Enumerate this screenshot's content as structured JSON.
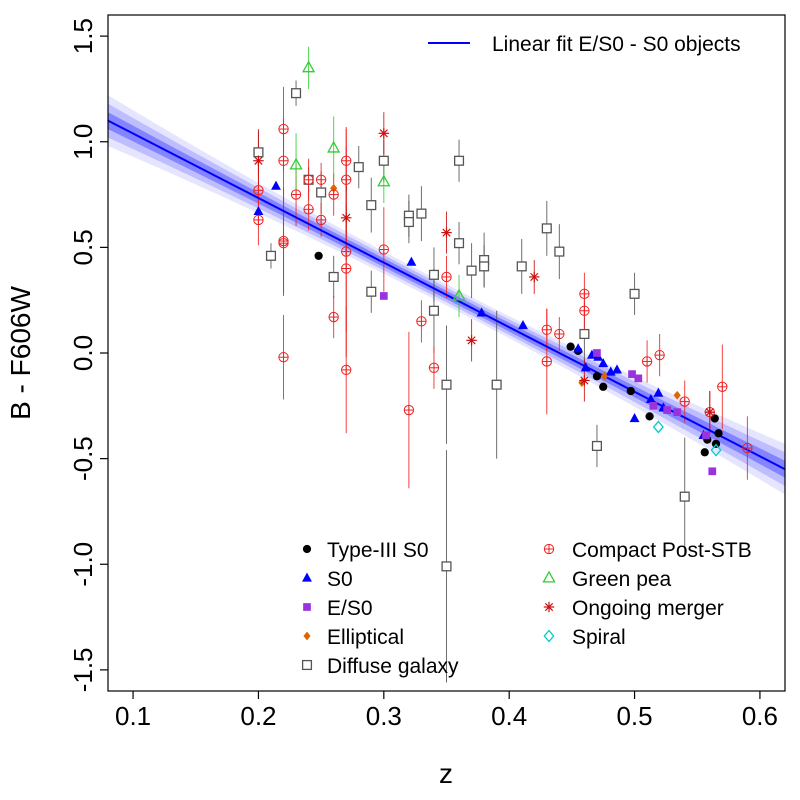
{
  "chart_data": {
    "type": "scatter",
    "title": "",
    "xlabel": "z",
    "ylabel": "B - F606W",
    "xlim": [
      0.08,
      0.62
    ],
    "ylim": [
      -1.6,
      1.6
    ],
    "xticks": [
      0.1,
      0.2,
      0.3,
      0.4,
      0.5,
      0.6
    ],
    "xtick_labels": [
      "0.1",
      "0.2",
      "0.3",
      "0.4",
      "0.5",
      "0.6"
    ],
    "yticks": [
      -1.5,
      -1.0,
      -0.5,
      0.0,
      0.5,
      1.0,
      1.5
    ],
    "ytick_labels": [
      "-1.5",
      "-1.0",
      "-0.5",
      "0.0",
      "0.5",
      "1.0",
      "1.5"
    ],
    "fit": {
      "name": "Linear fit E/S0 - S0 objects",
      "color": "#0000ff",
      "x": [
        0.08,
        0.62
      ],
      "y": [
        1.1,
        -0.55
      ],
      "bands": [
        {
          "color": "#1a1aff",
          "opacity": 0.35,
          "halfwidth": [
            0.04,
            0.02,
            0.04
          ]
        },
        {
          "color": "#3333ff",
          "opacity": 0.22,
          "halfwidth": [
            0.08,
            0.035,
            0.08
          ]
        },
        {
          "color": "#4444ff",
          "opacity": 0.14,
          "halfwidth": [
            0.12,
            0.05,
            0.12
          ]
        }
      ]
    },
    "series": [
      {
        "name": "Type-III S0",
        "marker": "filled-circle",
        "color": "#000000",
        "legend_col": 0,
        "points": [
          [
            0.248,
            0.46,
            0
          ],
          [
            0.449,
            0.03,
            0
          ],
          [
            0.455,
            0.01,
            0
          ],
          [
            0.475,
            -0.16,
            0
          ],
          [
            0.47,
            -0.11,
            0
          ],
          [
            0.497,
            -0.18,
            0
          ],
          [
            0.512,
            -0.3,
            0
          ],
          [
            0.558,
            -0.41,
            0
          ],
          [
            0.556,
            -0.47,
            0
          ],
          [
            0.564,
            -0.31,
            0
          ],
          [
            0.565,
            -0.43,
            0
          ],
          [
            0.567,
            -0.38,
            0
          ]
        ]
      },
      {
        "name": "S0",
        "marker": "filled-triangle",
        "color": "#0000ff",
        "legend_col": 0,
        "points": [
          [
            0.2,
            0.67,
            0
          ],
          [
            0.214,
            0.79,
            0
          ],
          [
            0.322,
            0.43,
            0
          ],
          [
            0.378,
            0.19,
            0
          ],
          [
            0.411,
            0.13,
            0
          ],
          [
            0.455,
            0.02,
            0
          ],
          [
            0.461,
            -0.07,
            0
          ],
          [
            0.466,
            -0.01,
            0
          ],
          [
            0.471,
            -0.02,
            0
          ],
          [
            0.475,
            -0.05,
            0
          ],
          [
            0.481,
            -0.09,
            0
          ],
          [
            0.486,
            -0.08,
            0
          ],
          [
            0.5,
            -0.31,
            0
          ],
          [
            0.513,
            -0.22,
            0
          ],
          [
            0.519,
            -0.19,
            0
          ],
          [
            0.523,
            -0.26,
            0
          ],
          [
            0.555,
            -0.39,
            0
          ]
        ]
      },
      {
        "name": "E/S0",
        "marker": "filled-square",
        "color": "#9933dd",
        "legend_col": 0,
        "points": [
          [
            0.3,
            0.27,
            0
          ],
          [
            0.47,
            0.0,
            0
          ],
          [
            0.498,
            -0.1,
            0
          ],
          [
            0.503,
            -0.12,
            0
          ],
          [
            0.515,
            -0.25,
            0
          ],
          [
            0.526,
            -0.27,
            0
          ],
          [
            0.534,
            -0.28,
            0
          ],
          [
            0.557,
            -0.39,
            0
          ],
          [
            0.562,
            -0.56,
            0
          ]
        ]
      },
      {
        "name": "Elliptical",
        "marker": "filled-diamond",
        "color": "#dd6600",
        "legend_col": 0,
        "points": [
          [
            0.26,
            0.78,
            0
          ],
          [
            0.458,
            -0.14,
            0
          ],
          [
            0.476,
            -0.11,
            0
          ],
          [
            0.534,
            -0.2,
            0
          ]
        ]
      },
      {
        "name": "Diffuse galaxy",
        "marker": "open-square",
        "color": "#555555",
        "legend_col": 0,
        "points": [
          [
            0.2,
            0.95,
            0.1
          ],
          [
            0.21,
            0.46,
            0.06
          ],
          [
            0.23,
            1.23,
            0.06
          ],
          [
            0.24,
            0.82,
            0.06
          ],
          [
            0.25,
            0.76,
            0.1
          ],
          [
            0.26,
            0.36,
            0.1
          ],
          [
            0.28,
            0.88,
            0.1
          ],
          [
            0.29,
            0.7,
            0.13
          ],
          [
            0.29,
            0.29,
            0.1
          ],
          [
            0.3,
            0.91,
            0.1
          ],
          [
            0.32,
            0.65,
            0.1
          ],
          [
            0.32,
            0.62,
            0.1
          ],
          [
            0.33,
            0.66,
            0.13
          ],
          [
            0.34,
            0.2,
            0.2
          ],
          [
            0.34,
            0.37,
            0.13
          ],
          [
            0.35,
            -0.15,
            0.28
          ],
          [
            0.35,
            -1.01,
            0.55
          ],
          [
            0.36,
            0.52,
            0.1
          ],
          [
            0.36,
            0.91,
            0.1
          ],
          [
            0.37,
            0.39,
            0.13
          ],
          [
            0.38,
            0.44,
            0.13
          ],
          [
            0.38,
            0.41,
            0.1
          ],
          [
            0.39,
            -0.15,
            0.35
          ],
          [
            0.41,
            0.41,
            0.13
          ],
          [
            0.43,
            0.59,
            0.13
          ],
          [
            0.44,
            0.48,
            0.13
          ],
          [
            0.46,
            0.09,
            0.15
          ],
          [
            0.47,
            -0.44,
            0.1
          ],
          [
            0.5,
            0.28,
            0.1
          ],
          [
            0.54,
            -0.68,
            0.28
          ]
        ]
      },
      {
        "name": "Compact Post-STB",
        "marker": "circle-plus",
        "color": "#ee2222",
        "legend_col": 1,
        "points": [
          [
            0.2,
            0.77,
            0.15
          ],
          [
            0.2,
            0.63,
            0.12
          ],
          [
            0.22,
            1.06,
            0.2
          ],
          [
            0.22,
            0.91,
            0.2
          ],
          [
            0.22,
            0.53,
            0.25
          ],
          [
            0.22,
            0.52,
            0.25
          ],
          [
            0.22,
            -0.02,
            0.2
          ],
          [
            0.23,
            0.75,
            0.15
          ],
          [
            0.24,
            0.82,
            0.1
          ],
          [
            0.24,
            0.68,
            0.1
          ],
          [
            0.25,
            0.82,
            0.08
          ],
          [
            0.25,
            0.63,
            0.08
          ],
          [
            0.26,
            0.75,
            0.1
          ],
          [
            0.26,
            0.17,
            0.1
          ],
          [
            0.27,
            0.91,
            0.15
          ],
          [
            0.27,
            0.82,
            0.25
          ],
          [
            0.27,
            0.48,
            0.5
          ],
          [
            0.27,
            0.4,
            0.3
          ],
          [
            0.27,
            -0.08,
            0.3
          ],
          [
            0.3,
            0.49,
            0.2
          ],
          [
            0.32,
            -0.27,
            0.37
          ],
          [
            0.33,
            0.15,
            0.1
          ],
          [
            0.34,
            -0.07,
            0.1
          ],
          [
            0.35,
            0.36,
            0.1
          ],
          [
            0.43,
            0.11,
            0.1
          ],
          [
            0.43,
            -0.04,
            0.25
          ],
          [
            0.44,
            0.09,
            0.08
          ],
          [
            0.46,
            0.28,
            0.1
          ],
          [
            0.46,
            0.2,
            0.1
          ],
          [
            0.51,
            -0.04,
            0.1
          ],
          [
            0.52,
            -0.01,
            0.1
          ],
          [
            0.54,
            -0.23,
            0.1
          ],
          [
            0.56,
            -0.28,
            0.1
          ],
          [
            0.57,
            -0.16,
            0.2
          ],
          [
            0.59,
            -0.45,
            0.15
          ]
        ]
      },
      {
        "name": "Green pea",
        "marker": "open-triangle",
        "color": "#33cc33",
        "legend_col": 1,
        "points": [
          [
            0.24,
            1.35,
            0.1
          ],
          [
            0.23,
            0.89,
            0.15
          ],
          [
            0.26,
            0.97,
            0.15
          ],
          [
            0.3,
            0.81,
            0.1
          ],
          [
            0.36,
            0.27,
            0.1
          ]
        ]
      },
      {
        "name": "Ongoing merger",
        "marker": "asterisk",
        "color": "#cc1111",
        "legend_col": 1,
        "points": [
          [
            0.2,
            0.91,
            0.15
          ],
          [
            0.27,
            0.64,
            0.2
          ],
          [
            0.3,
            1.04,
            0.1
          ],
          [
            0.35,
            0.57,
            0.1
          ],
          [
            0.37,
            0.06,
            0.1
          ],
          [
            0.42,
            0.36,
            0.08
          ],
          [
            0.46,
            -0.13,
            0.1
          ],
          [
            0.56,
            -0.28,
            0.1
          ]
        ]
      },
      {
        "name": "Spiral",
        "marker": "open-diamond",
        "color": "#00cccc",
        "legend_col": 1,
        "points": [
          [
            0.519,
            -0.35,
            0
          ],
          [
            0.565,
            -0.46,
            0
          ]
        ]
      }
    ]
  }
}
